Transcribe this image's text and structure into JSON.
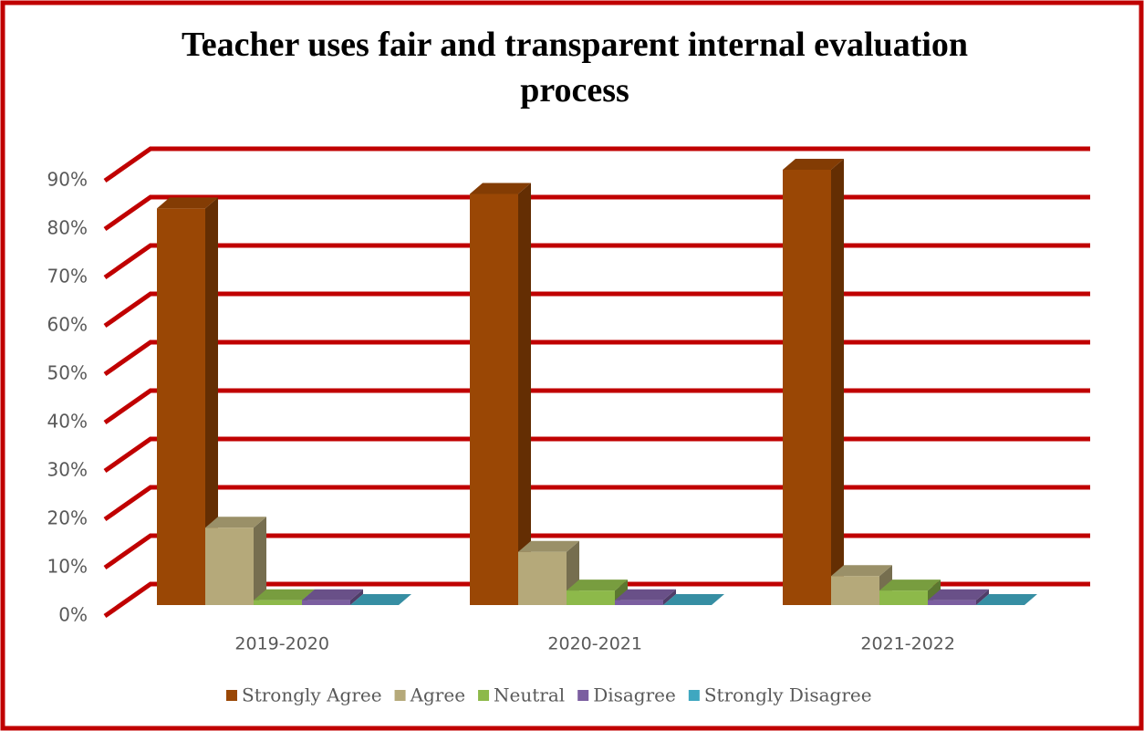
{
  "chart_data": {
    "type": "bar3d",
    "title": "Teacher uses fair and transparent internal evaluation process",
    "categories": [
      "2019-2020",
      "2020-2021",
      "2021-2022"
    ],
    "series": [
      {
        "name": "Strongly Agree",
        "color": "#9a4705",
        "values": [
          82,
          85,
          90
        ]
      },
      {
        "name": "Agree",
        "color": "#b5a97a",
        "values": [
          16,
          11,
          6
        ]
      },
      {
        "name": "Neutral",
        "color": "#8db94a",
        "values": [
          1,
          3,
          3
        ]
      },
      {
        "name": "Disagree",
        "color": "#7b5ea0",
        "values": [
          1,
          1,
          1
        ]
      },
      {
        "name": "Strongly Disagree",
        "color": "#3fa7c0",
        "values": [
          0,
          0,
          0
        ]
      }
    ],
    "ylim": [
      0,
      90
    ],
    "yticks": [
      {
        "value": 0,
        "label": "0%"
      },
      {
        "value": 10,
        "label": "10%"
      },
      {
        "value": 20,
        "label": "20%"
      },
      {
        "value": 30,
        "label": "30%"
      },
      {
        "value": 40,
        "label": "40%"
      },
      {
        "value": 50,
        "label": "50%"
      },
      {
        "value": 60,
        "label": "60%"
      },
      {
        "value": 70,
        "label": "70%"
      },
      {
        "value": 80,
        "label": "80%"
      },
      {
        "value": 90,
        "label": "90%"
      }
    ],
    "grid": true,
    "grid_color": "#c00000",
    "legend": "bottom"
  }
}
